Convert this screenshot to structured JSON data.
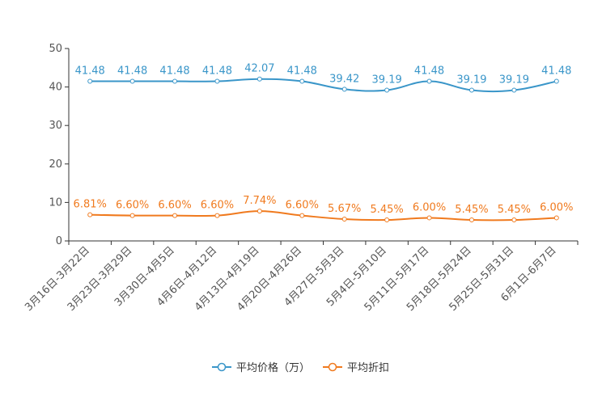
{
  "chart_data": {
    "type": "line",
    "categories": [
      "3月16日-3月22日",
      "3月23日-3月29日",
      "3月30日-4月5日",
      "4月6日-4月12日",
      "4月13日-4月19日",
      "4月20日-4月26日",
      "4月27日-5月3日",
      "5月4日-5月10日",
      "5月11日-5月17日",
      "5月18日-5月24日",
      "5月25日-5月31日",
      "6月1日-6月7日"
    ],
    "ylim": [
      0,
      50
    ],
    "yticks": [
      0,
      10,
      20,
      30,
      40,
      50
    ],
    "series": [
      {
        "name": "平均价格（万）",
        "color": "#3a96c9",
        "values": [
          41.48,
          41.48,
          41.48,
          41.48,
          42.07,
          41.48,
          39.42,
          39.19,
          41.48,
          39.19,
          39.19,
          41.48
        ],
        "labels": [
          "41.48",
          "41.48",
          "41.48",
          "41.48",
          "42.07",
          "41.48",
          "39.42",
          "39.19",
          "41.48",
          "39.19",
          "39.19",
          "41.48"
        ]
      },
      {
        "name": "平均折扣",
        "color": "#f07a1e",
        "values": [
          6.81,
          6.6,
          6.6,
          6.6,
          7.74,
          6.6,
          5.67,
          5.45,
          6.0,
          5.45,
          5.45,
          6.0
        ],
        "labels": [
          "6.81%",
          "6.60%",
          "6.60%",
          "6.60%",
          "7.74%",
          "6.60%",
          "5.67%",
          "5.45%",
          "6.00%",
          "5.45%",
          "5.45%",
          "6.00%"
        ]
      }
    ],
    "legend_position": "bottom-center"
  }
}
